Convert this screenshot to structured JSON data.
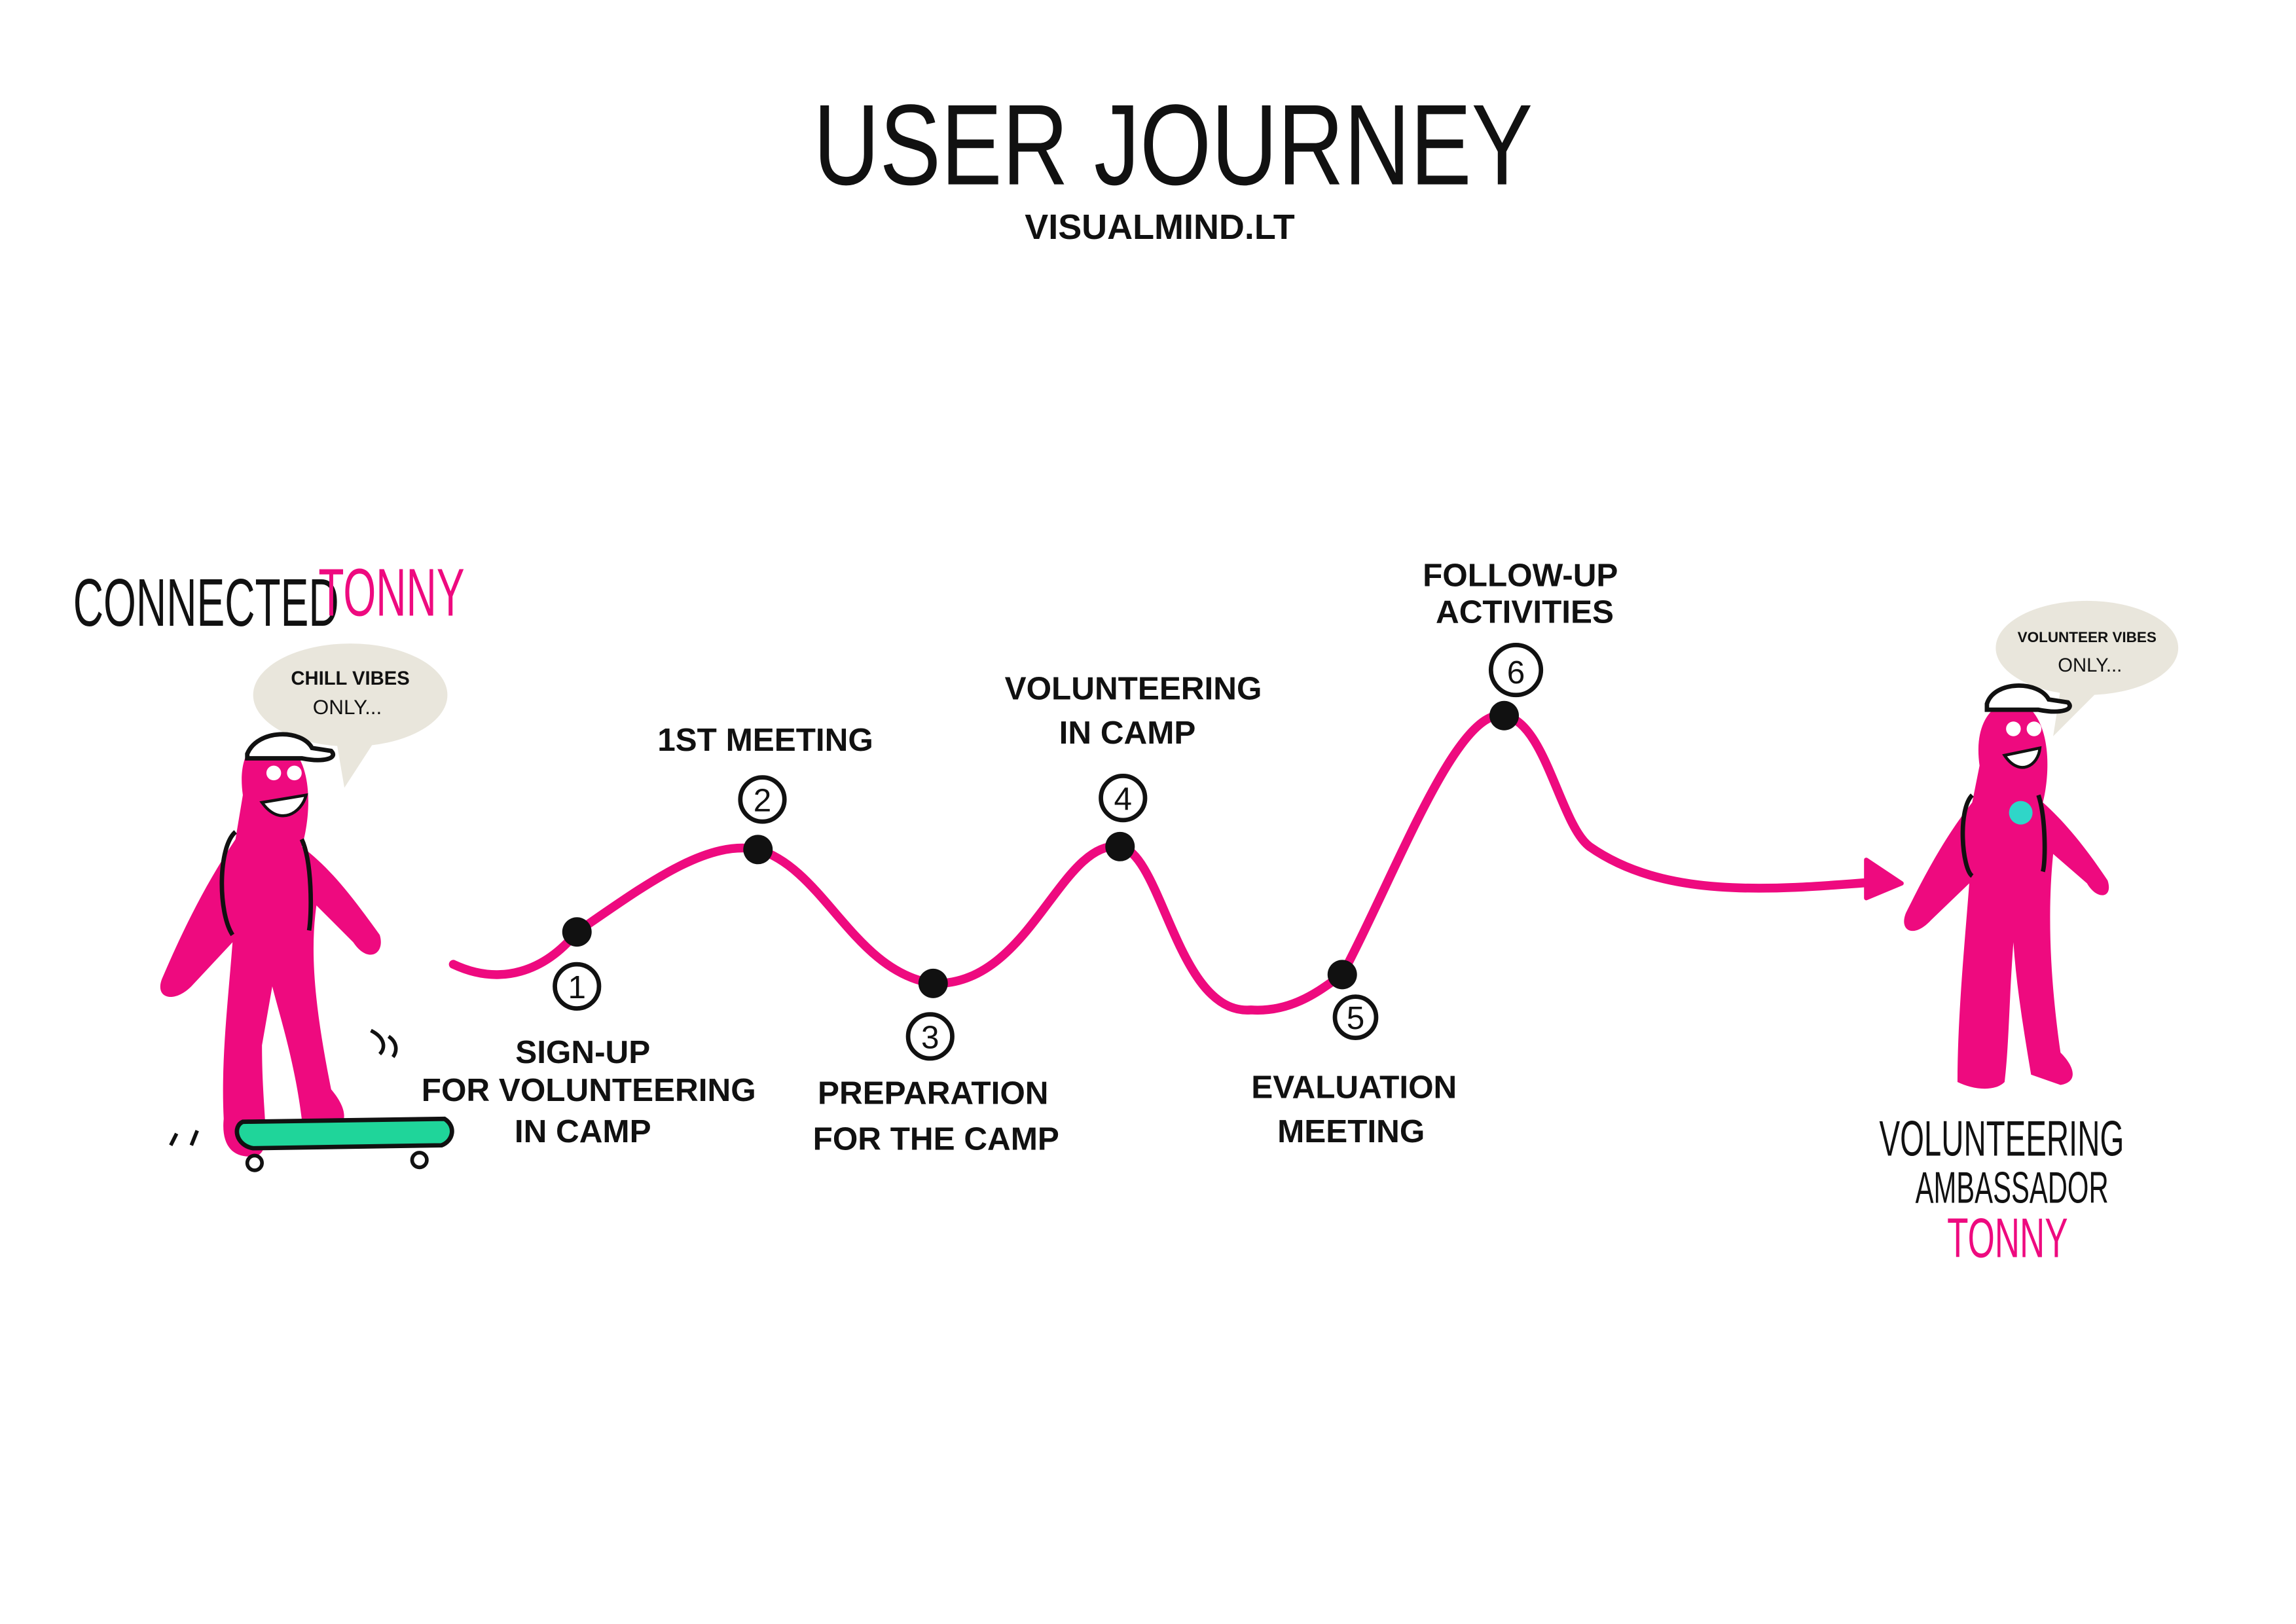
{
  "title": "USER JOURNEY",
  "subtitle": "VISUALMIND.LT",
  "colors": {
    "accent": "#ee0a7f",
    "ink": "#111111",
    "bubble": "#e9e6dc",
    "skateboard": "#1fd59a"
  },
  "start_persona": {
    "prefix": "CONNECTED",
    "name": "TONNY",
    "speech": [
      "CHILL VIBES",
      "ONLY..."
    ]
  },
  "end_persona": {
    "lines": [
      "VOLUNTEERING",
      "AMBASSADOR"
    ],
    "name": "TONNY",
    "speech": [
      "VOLUNTEER VIBES",
      "ONLY..."
    ]
  },
  "steps": [
    {
      "number": "1",
      "label": [
        "SIGN-UP",
        "FOR VOLUNTEERING",
        "IN  CAMP"
      ]
    },
    {
      "number": "2",
      "label": [
        "1ST MEETING"
      ]
    },
    {
      "number": "3",
      "label": [
        "PREPARATION",
        "FOR THE CAMP"
      ]
    },
    {
      "number": "4",
      "label": [
        "VOLUNTEERING",
        "IN CAMP"
      ]
    },
    {
      "number": "5",
      "label": [
        "EVALUATION",
        "MEETING"
      ]
    },
    {
      "number": "6",
      "label": [
        "FOLLOW-UP",
        "ACTIVITIES"
      ]
    }
  ]
}
